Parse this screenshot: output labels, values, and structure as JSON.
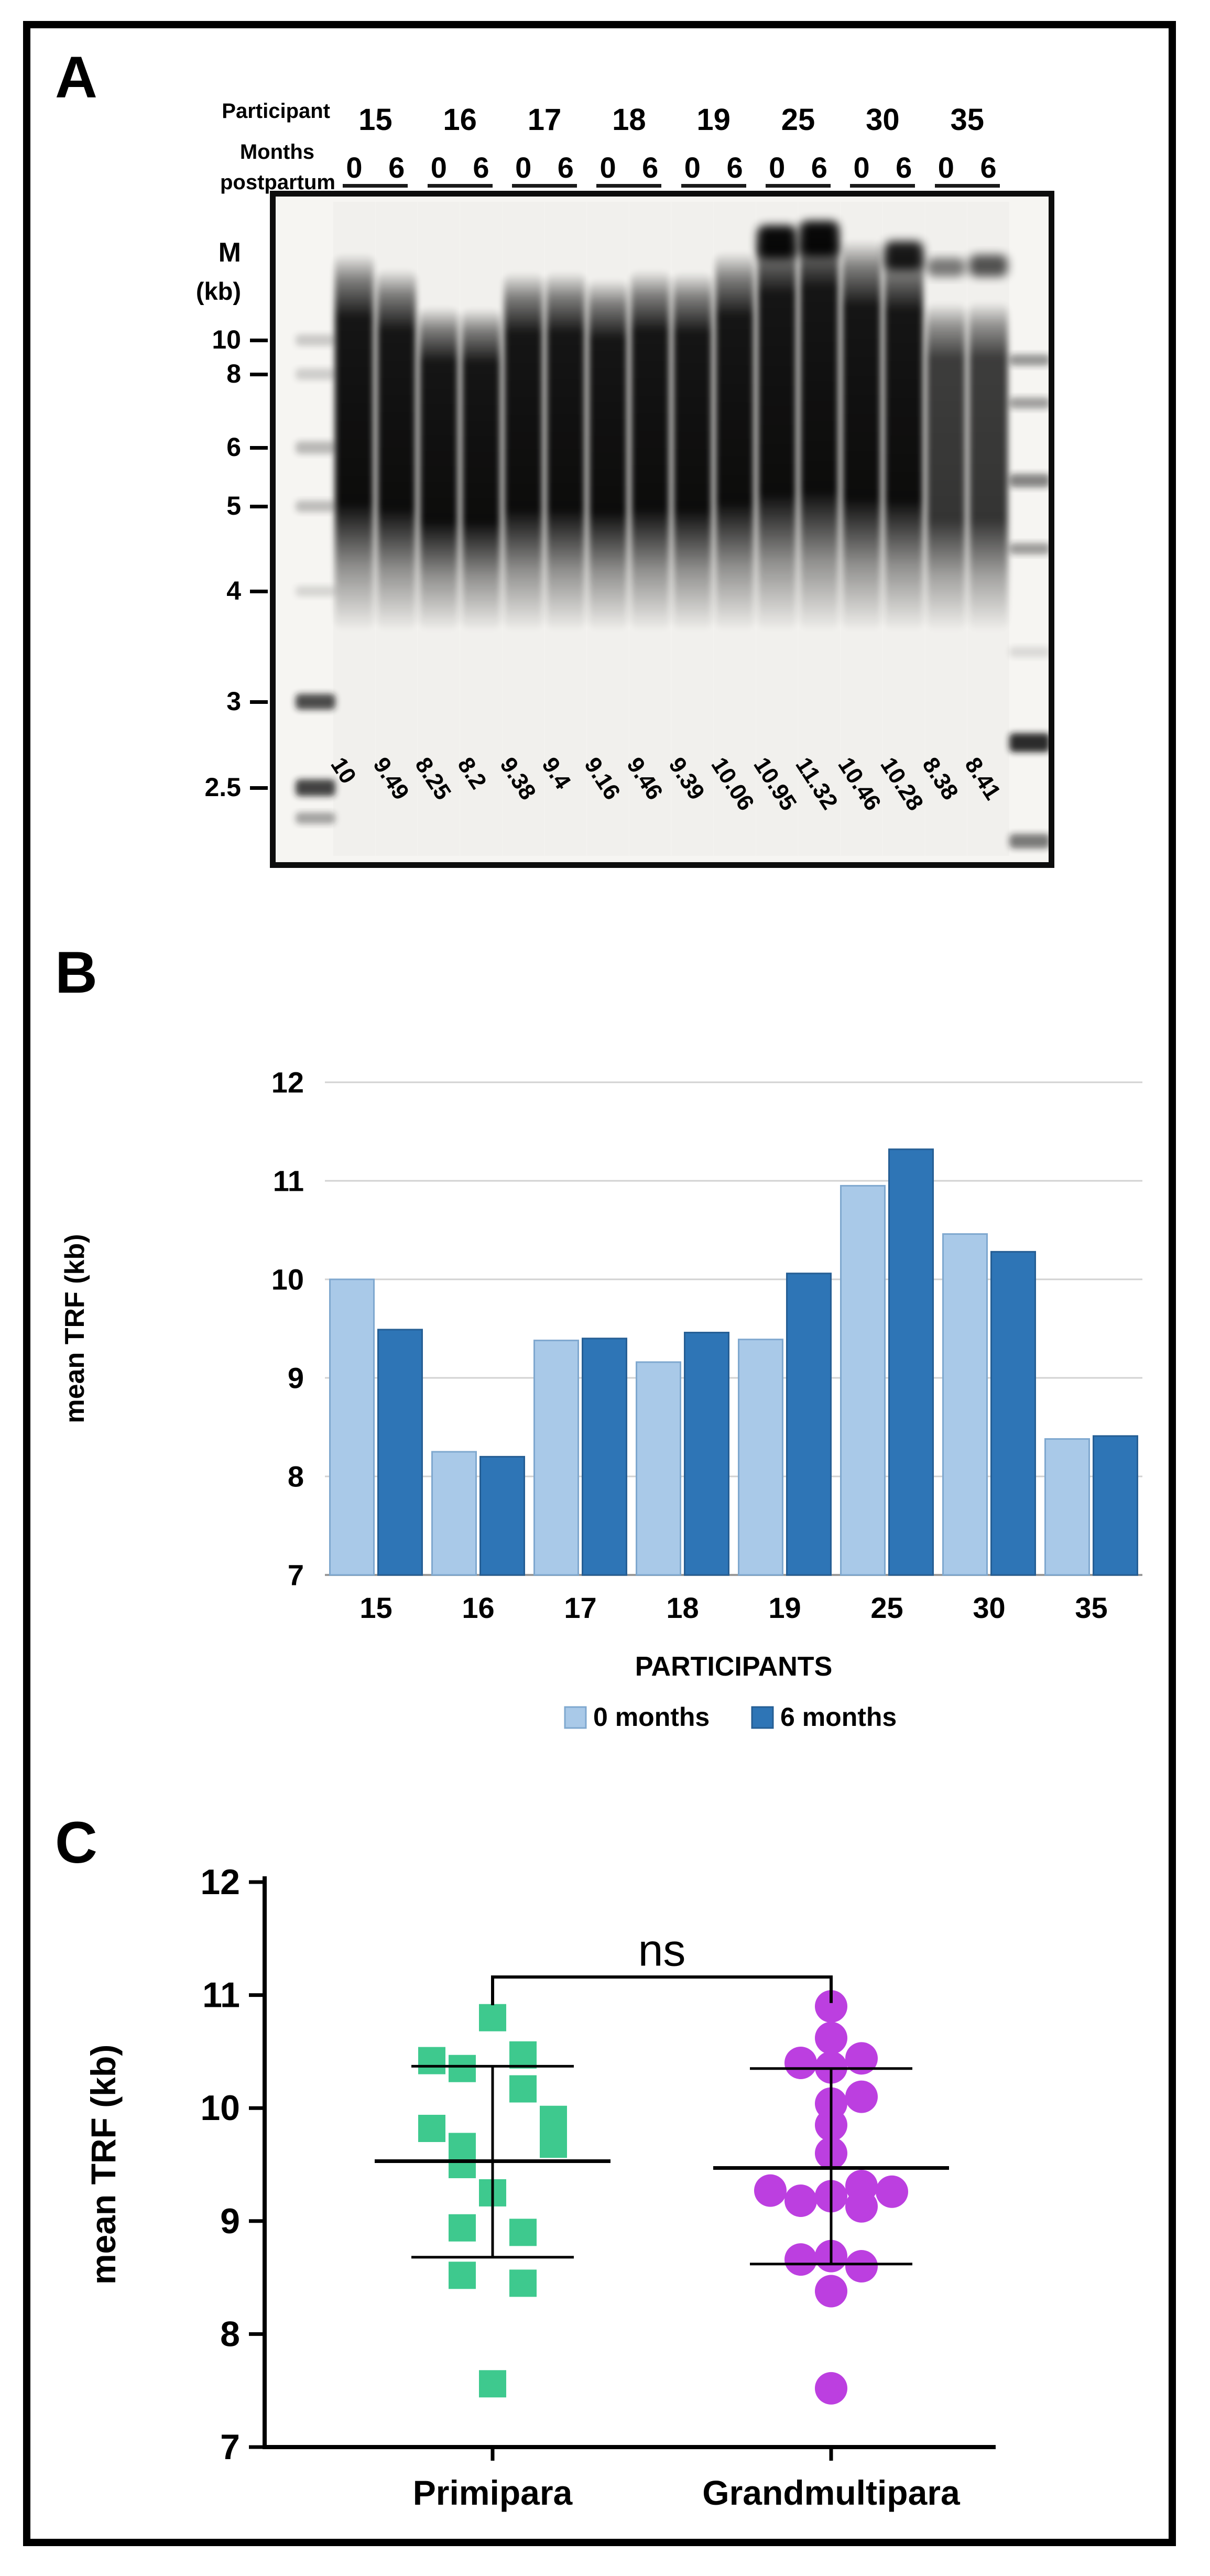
{
  "figure": {
    "panel_a": "A",
    "panel_b": "B",
    "panel_c": "C"
  },
  "gel": {
    "header": {
      "participant_label": "Participant",
      "months_label": "Months",
      "postpartum_label": "postpartum",
      "participants": [
        "15",
        "16",
        "17",
        "18",
        "19",
        "25",
        "30",
        "35"
      ],
      "timepoints": [
        "0",
        "6"
      ]
    },
    "marker": {
      "label": "M",
      "unit": "(kb)",
      "ticks": [
        "10",
        "8",
        "6",
        "5",
        "4",
        "3",
        "2.5"
      ]
    },
    "lane_values": [
      "10",
      "9.49",
      "8.25",
      "8.2",
      "9.38",
      "9.4",
      "9.16",
      "9.46",
      "9.39",
      "10.06",
      "10.95",
      "11.32",
      "10.46",
      "10.28",
      "8.38",
      "8.41"
    ]
  },
  "chart_data": [
    {
      "type": "bar",
      "panel": "B",
      "categories": [
        "15",
        "16",
        "17",
        "18",
        "19",
        "25",
        "30",
        "35"
      ],
      "series": [
        {
          "name": "0 months",
          "color": "#A9C9E8",
          "border": "#7FA8CF",
          "values": [
            10,
            8.25,
            9.38,
            9.16,
            9.39,
            10.95,
            10.46,
            8.38
          ]
        },
        {
          "name": "6 months",
          "color": "#2E75B6",
          "border": "#255E94",
          "values": [
            9.49,
            8.2,
            9.4,
            9.46,
            10.06,
            11.32,
            10.28,
            8.41
          ]
        }
      ],
      "xlabel": "PARTICIPANTS",
      "ylabel": "mean TRF (kb)",
      "ylim": [
        7,
        12
      ],
      "yticks": [
        7,
        8,
        9,
        10,
        11,
        12
      ],
      "grid": true,
      "grid_color": "#D2D2D2",
      "axis_color": "#9A9A9A",
      "legend_position": "bottom"
    },
    {
      "type": "scatter",
      "panel": "C",
      "ylabel": "mean TRF (kb)",
      "ylim": [
        7,
        12
      ],
      "yticks": [
        7,
        8,
        9,
        10,
        11,
        12
      ],
      "annotation": "ns",
      "groups": [
        {
          "name": "Primipara",
          "marker": "square",
          "color": "#3EC98E",
          "mean": 9.53,
          "sd_top": 10.37,
          "sd_bottom": 8.68,
          "points": [
            [
              0,
              10.8
            ],
            [
              -2,
              10.42
            ],
            [
              -1,
              10.35
            ],
            [
              1,
              10.47
            ],
            [
              1,
              10.17
            ],
            [
              -2,
              9.82
            ],
            [
              2,
              9.9
            ],
            [
              2,
              9.68
            ],
            [
              -1,
              9.66
            ],
            [
              -1,
              9.5
            ],
            [
              0,
              9.25
            ],
            [
              -1,
              8.94
            ],
            [
              1,
              8.9
            ],
            [
              -1,
              8.52
            ],
            [
              1,
              8.45
            ],
            [
              0,
              7.56
            ]
          ]
        },
        {
          "name": "Grandmultipara",
          "marker": "circle",
          "color": "#BC3FE0",
          "mean": 9.47,
          "sd_top": 10.35,
          "sd_bottom": 8.62,
          "points": [
            [
              0,
              10.9
            ],
            [
              0,
              10.62
            ],
            [
              -1,
              10.4
            ],
            [
              0,
              10.36
            ],
            [
              1,
              10.44
            ],
            [
              0,
              10.04
            ],
            [
              1,
              10.1
            ],
            [
              0,
              9.85
            ],
            [
              0,
              9.6
            ],
            [
              -2,
              9.27
            ],
            [
              -1,
              9.18
            ],
            [
              0,
              9.22
            ],
            [
              1,
              9.31
            ],
            [
              1,
              9.13
            ],
            [
              2,
              9.26
            ],
            [
              -1,
              8.66
            ],
            [
              0,
              8.69
            ],
            [
              1,
              8.6
            ],
            [
              0,
              8.38
            ],
            [
              0,
              7.52
            ]
          ]
        }
      ]
    }
  ]
}
